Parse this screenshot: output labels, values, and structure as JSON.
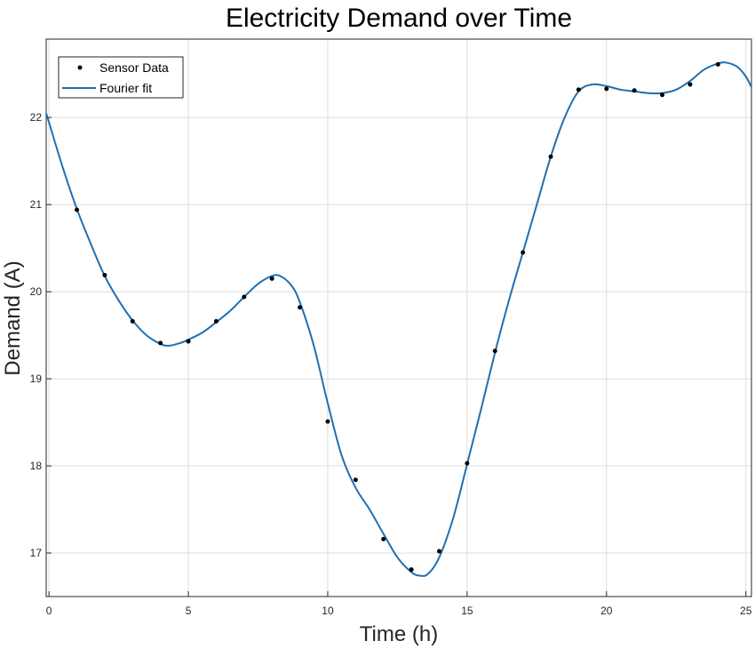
{
  "chart_data": {
    "type": "line",
    "title": "Electricity Demand over Time",
    "xlabel": "Time (h)",
    "ylabel": "Demand (A)",
    "xlim": [
      -0.1,
      25.2
    ],
    "ylim": [
      16.5,
      22.9
    ],
    "xticks": [
      0,
      5,
      10,
      15,
      20,
      25
    ],
    "yticks": [
      17,
      18,
      19,
      20,
      21,
      22
    ],
    "grid": true,
    "legend_position": "top-left",
    "series": [
      {
        "name": "Sensor Data",
        "style": "markers",
        "color": "#000000",
        "x": [
          1,
          2,
          3,
          4,
          5,
          6,
          7,
          8,
          9,
          10,
          11,
          12,
          13,
          14,
          15,
          16,
          17,
          18,
          19,
          20,
          21,
          22,
          23,
          24
        ],
        "y": [
          20.94,
          20.19,
          19.66,
          19.41,
          19.43,
          19.66,
          19.94,
          20.15,
          19.82,
          18.51,
          17.84,
          17.16,
          16.81,
          17.02,
          18.03,
          19.32,
          20.45,
          21.55,
          22.32,
          22.33,
          22.31,
          22.26,
          22.38,
          22.61
        ]
      },
      {
        "name": "Fourier fit",
        "style": "line",
        "color": "#1f6fb2",
        "x": [
          -0.1,
          0.5,
          1,
          1.5,
          2,
          2.5,
          3,
          3.5,
          4,
          4.3,
          4.7,
          5,
          5.5,
          6,
          6.5,
          7,
          7.5,
          8,
          8.3,
          8.7,
          9,
          9.5,
          10,
          10.5,
          11,
          11.5,
          12,
          12.5,
          13,
          13.3,
          13.6,
          14,
          14.5,
          15,
          15.5,
          16,
          16.5,
          17,
          17.5,
          18,
          18.5,
          19,
          19.5,
          20,
          20.5,
          21,
          21.5,
          22,
          22.5,
          23,
          23.5,
          24,
          24.3,
          24.7,
          25,
          25.2
        ],
        "y": [
          22.05,
          21.42,
          20.95,
          20.55,
          20.18,
          19.9,
          19.67,
          19.5,
          19.4,
          19.38,
          19.41,
          19.45,
          19.53,
          19.65,
          19.78,
          19.94,
          20.09,
          20.18,
          20.18,
          20.07,
          19.88,
          19.38,
          18.72,
          18.12,
          17.75,
          17.5,
          17.22,
          16.95,
          16.78,
          16.74,
          16.76,
          16.95,
          17.4,
          18.02,
          18.65,
          19.3,
          19.9,
          20.45,
          21.0,
          21.55,
          22.0,
          22.3,
          22.38,
          22.36,
          22.32,
          22.3,
          22.28,
          22.28,
          22.32,
          22.42,
          22.55,
          22.62,
          22.63,
          22.58,
          22.47,
          22.35
        ]
      }
    ]
  }
}
